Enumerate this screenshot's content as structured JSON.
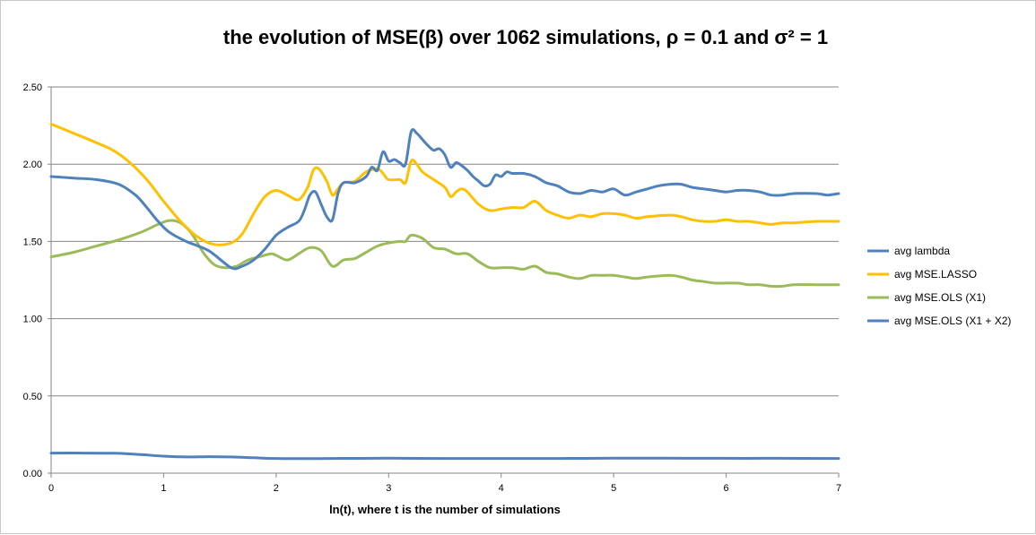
{
  "chart_data": {
    "type": "line",
    "title": "the evolution of MSE(β) over 1062 simulations, ρ = 0.1 and σ² = 1",
    "xlabel": "ln(t), where t is the number of simulations",
    "ylabel": "",
    "xlim": [
      0,
      7
    ],
    "ylim": [
      0,
      2.5
    ],
    "x_ticks": [
      "0",
      "1",
      "2",
      "3",
      "4",
      "5",
      "6",
      "7"
    ],
    "y_ticks": [
      "0.00",
      "0.50",
      "1.00",
      "1.50",
      "2.00",
      "2.50"
    ],
    "grid": "horizontal",
    "legend_position": "right",
    "series": [
      {
        "name": "avg lambda",
        "color": "#4f81bd",
        "points": [
          [
            0,
            0.13
          ],
          [
            0.3,
            0.13
          ],
          [
            0.6,
            0.128
          ],
          [
            0.8,
            0.12
          ],
          [
            1,
            0.11
          ],
          [
            1.2,
            0.105
          ],
          [
            1.4,
            0.107
          ],
          [
            1.6,
            0.105
          ],
          [
            1.8,
            0.1
          ],
          [
            2,
            0.095
          ],
          [
            2.5,
            0.095
          ],
          [
            3,
            0.097
          ],
          [
            3.5,
            0.095
          ],
          [
            4,
            0.095
          ],
          [
            4.5,
            0.095
          ],
          [
            5,
            0.097
          ],
          [
            5.5,
            0.097
          ],
          [
            6,
            0.096
          ],
          [
            6.5,
            0.096
          ],
          [
            7,
            0.095
          ]
        ]
      },
      {
        "name": "avg MSE.LASSO",
        "color": "#ffc000",
        "points": [
          [
            0,
            2.26
          ],
          [
            0.2,
            2.2
          ],
          [
            0.4,
            2.14
          ],
          [
            0.55,
            2.09
          ],
          [
            0.7,
            2.01
          ],
          [
            0.85,
            1.9
          ],
          [
            1,
            1.76
          ],
          [
            1.15,
            1.63
          ],
          [
            1.3,
            1.53
          ],
          [
            1.45,
            1.48
          ],
          [
            1.6,
            1.49
          ],
          [
            1.7,
            1.55
          ],
          [
            1.8,
            1.68
          ],
          [
            1.9,
            1.79
          ],
          [
            2,
            1.83
          ],
          [
            2.1,
            1.8
          ],
          [
            2.2,
            1.77
          ],
          [
            2.28,
            1.85
          ],
          [
            2.33,
            1.96
          ],
          [
            2.38,
            1.97
          ],
          [
            2.45,
            1.89
          ],
          [
            2.5,
            1.8
          ],
          [
            2.55,
            1.84
          ],
          [
            2.6,
            1.88
          ],
          [
            2.7,
            1.89
          ],
          [
            2.8,
            1.95
          ],
          [
            2.9,
            1.97
          ],
          [
            2.95,
            1.94
          ],
          [
            3.0,
            1.9
          ],
          [
            3.1,
            1.9
          ],
          [
            3.15,
            1.88
          ],
          [
            3.2,
            2.02
          ],
          [
            3.25,
            2.0
          ],
          [
            3.3,
            1.95
          ],
          [
            3.4,
            1.9
          ],
          [
            3.5,
            1.85
          ],
          [
            3.55,
            1.79
          ],
          [
            3.6,
            1.82
          ],
          [
            3.65,
            1.84
          ],
          [
            3.7,
            1.82
          ],
          [
            3.8,
            1.74
          ],
          [
            3.9,
            1.7
          ],
          [
            4.0,
            1.71
          ],
          [
            4.1,
            1.72
          ],
          [
            4.2,
            1.72
          ],
          [
            4.3,
            1.76
          ],
          [
            4.4,
            1.7
          ],
          [
            4.5,
            1.67
          ],
          [
            4.6,
            1.65
          ],
          [
            4.7,
            1.67
          ],
          [
            4.8,
            1.66
          ],
          [
            4.9,
            1.68
          ],
          [
            5,
            1.68
          ],
          [
            5.1,
            1.67
          ],
          [
            5.2,
            1.65
          ],
          [
            5.3,
            1.66
          ],
          [
            5.5,
            1.67
          ],
          [
            5.6,
            1.66
          ],
          [
            5.7,
            1.64
          ],
          [
            5.8,
            1.63
          ],
          [
            5.9,
            1.63
          ],
          [
            6,
            1.64
          ],
          [
            6.1,
            1.63
          ],
          [
            6.2,
            1.63
          ],
          [
            6.3,
            1.62
          ],
          [
            6.4,
            1.61
          ],
          [
            6.5,
            1.62
          ],
          [
            6.6,
            1.62
          ],
          [
            6.8,
            1.63
          ],
          [
            7,
            1.63
          ]
        ]
      },
      {
        "name": "avg MSE.OLS (X1)",
        "color": "#9bbb59",
        "points": [
          [
            0,
            1.4
          ],
          [
            0.2,
            1.43
          ],
          [
            0.4,
            1.47
          ],
          [
            0.6,
            1.51
          ],
          [
            0.8,
            1.56
          ],
          [
            0.95,
            1.61
          ],
          [
            1.05,
            1.635
          ],
          [
            1.15,
            1.62
          ],
          [
            1.25,
            1.55
          ],
          [
            1.35,
            1.43
          ],
          [
            1.45,
            1.35
          ],
          [
            1.55,
            1.33
          ],
          [
            1.65,
            1.34
          ],
          [
            1.75,
            1.38
          ],
          [
            1.85,
            1.4
          ],
          [
            1.95,
            1.42
          ],
          [
            2.0,
            1.41
          ],
          [
            2.1,
            1.38
          ],
          [
            2.2,
            1.42
          ],
          [
            2.3,
            1.46
          ],
          [
            2.4,
            1.44
          ],
          [
            2.5,
            1.34
          ],
          [
            2.6,
            1.38
          ],
          [
            2.7,
            1.39
          ],
          [
            2.8,
            1.43
          ],
          [
            2.9,
            1.47
          ],
          [
            3.0,
            1.49
          ],
          [
            3.1,
            1.5
          ],
          [
            3.15,
            1.5
          ],
          [
            3.2,
            1.54
          ],
          [
            3.3,
            1.52
          ],
          [
            3.4,
            1.46
          ],
          [
            3.5,
            1.45
          ],
          [
            3.6,
            1.42
          ],
          [
            3.7,
            1.42
          ],
          [
            3.8,
            1.37
          ],
          [
            3.9,
            1.33
          ],
          [
            4.0,
            1.33
          ],
          [
            4.1,
            1.33
          ],
          [
            4.2,
            1.32
          ],
          [
            4.3,
            1.34
          ],
          [
            4.4,
            1.3
          ],
          [
            4.5,
            1.29
          ],
          [
            4.6,
            1.27
          ],
          [
            4.7,
            1.26
          ],
          [
            4.8,
            1.28
          ],
          [
            4.9,
            1.28
          ],
          [
            5,
            1.28
          ],
          [
            5.1,
            1.27
          ],
          [
            5.2,
            1.26
          ],
          [
            5.3,
            1.27
          ],
          [
            5.5,
            1.28
          ],
          [
            5.6,
            1.27
          ],
          [
            5.7,
            1.25
          ],
          [
            5.8,
            1.24
          ],
          [
            5.9,
            1.23
          ],
          [
            6,
            1.23
          ],
          [
            6.1,
            1.23
          ],
          [
            6.2,
            1.22
          ],
          [
            6.3,
            1.22
          ],
          [
            6.4,
            1.21
          ],
          [
            6.5,
            1.21
          ],
          [
            6.6,
            1.22
          ],
          [
            6.8,
            1.22
          ],
          [
            7,
            1.22
          ]
        ]
      },
      {
        "name": "avg MSE.OLS (X1 + X2)",
        "color": "#4f81bd",
        "points": [
          [
            0,
            1.92
          ],
          [
            0.2,
            1.91
          ],
          [
            0.4,
            1.9
          ],
          [
            0.6,
            1.87
          ],
          [
            0.75,
            1.8
          ],
          [
            0.85,
            1.72
          ],
          [
            0.95,
            1.63
          ],
          [
            1.05,
            1.56
          ],
          [
            1.2,
            1.5
          ],
          [
            1.4,
            1.44
          ],
          [
            1.6,
            1.33
          ],
          [
            1.7,
            1.34
          ],
          [
            1.8,
            1.38
          ],
          [
            1.9,
            1.45
          ],
          [
            2.0,
            1.54
          ],
          [
            2.1,
            1.59
          ],
          [
            2.2,
            1.63
          ],
          [
            2.25,
            1.7
          ],
          [
            2.3,
            1.8
          ],
          [
            2.35,
            1.82
          ],
          [
            2.4,
            1.74
          ],
          [
            2.45,
            1.66
          ],
          [
            2.5,
            1.64
          ],
          [
            2.55,
            1.81
          ],
          [
            2.6,
            1.88
          ],
          [
            2.7,
            1.88
          ],
          [
            2.8,
            1.92
          ],
          [
            2.85,
            1.98
          ],
          [
            2.9,
            1.96
          ],
          [
            2.95,
            2.08
          ],
          [
            3.0,
            2.02
          ],
          [
            3.05,
            2.03
          ],
          [
            3.1,
            2.01
          ],
          [
            3.15,
            2.0
          ],
          [
            3.2,
            2.21
          ],
          [
            3.25,
            2.2
          ],
          [
            3.3,
            2.16
          ],
          [
            3.35,
            2.12
          ],
          [
            3.4,
            2.09
          ],
          [
            3.45,
            2.1
          ],
          [
            3.5,
            2.06
          ],
          [
            3.55,
            1.98
          ],
          [
            3.6,
            2.01
          ],
          [
            3.65,
            1.99
          ],
          [
            3.7,
            1.96
          ],
          [
            3.75,
            1.92
          ],
          [
            3.8,
            1.89
          ],
          [
            3.85,
            1.86
          ],
          [
            3.9,
            1.87
          ],
          [
            3.95,
            1.93
          ],
          [
            4.0,
            1.92
          ],
          [
            4.05,
            1.95
          ],
          [
            4.1,
            1.94
          ],
          [
            4.2,
            1.94
          ],
          [
            4.3,
            1.92
          ],
          [
            4.4,
            1.88
          ],
          [
            4.5,
            1.86
          ],
          [
            4.6,
            1.82
          ],
          [
            4.7,
            1.81
          ],
          [
            4.8,
            1.83
          ],
          [
            4.9,
            1.82
          ],
          [
            5,
            1.84
          ],
          [
            5.1,
            1.8
          ],
          [
            5.2,
            1.82
          ],
          [
            5.3,
            1.84
          ],
          [
            5.4,
            1.86
          ],
          [
            5.5,
            1.87
          ],
          [
            5.6,
            1.87
          ],
          [
            5.7,
            1.85
          ],
          [
            5.8,
            1.84
          ],
          [
            5.9,
            1.83
          ],
          [
            6,
            1.82
          ],
          [
            6.1,
            1.83
          ],
          [
            6.2,
            1.83
          ],
          [
            6.3,
            1.82
          ],
          [
            6.4,
            1.8
          ],
          [
            6.5,
            1.8
          ],
          [
            6.6,
            1.81
          ],
          [
            6.8,
            1.81
          ],
          [
            6.9,
            1.8
          ],
          [
            7,
            1.81
          ]
        ]
      }
    ]
  }
}
